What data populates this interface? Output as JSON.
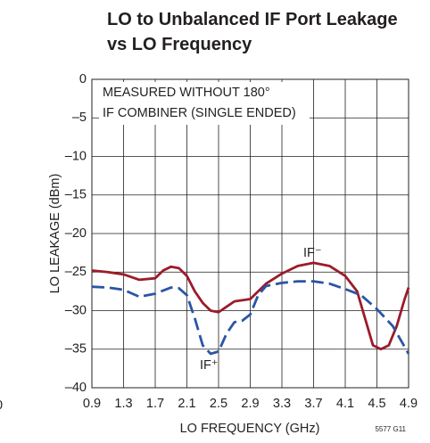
{
  "chart_data": {
    "type": "line",
    "title": [
      "LO to Unbalanced IF Port Leakage",
      "vs LO Frequency"
    ],
    "xlabel": "LO FREQUENCY (GHz)",
    "ylabel": "LO LEAKAGE (dBm)",
    "xlim": [
      0.9,
      4.9
    ],
    "xticks": [
      0.9,
      1.3,
      1.7,
      2.1,
      2.5,
      2.9,
      3.3,
      3.7,
      4.1,
      4.5,
      4.9
    ],
    "ylim": [
      -40,
      0
    ],
    "yticks": [
      {
        "value": -40,
        "label": "–40"
      },
      {
        "value": -35,
        "label": "–35"
      },
      {
        "value": -30,
        "label": "–30"
      },
      {
        "value": -25,
        "label": "–25"
      },
      {
        "value": -20,
        "label": "–20"
      },
      {
        "value": -15,
        "label": "–15"
      },
      {
        "value": -10,
        "label": "–10"
      },
      {
        "value": -5,
        "label": "–5"
      },
      0
    ],
    "grid": true,
    "series": [
      {
        "name": "IF⁻",
        "color": "#9b1b2a",
        "style": "solid",
        "x": [
          0.9,
          1.1,
          1.3,
          1.5,
          1.7,
          1.8,
          1.9,
          2.0,
          2.1,
          2.2,
          2.3,
          2.4,
          2.5,
          2.6,
          2.7,
          2.9,
          3.0,
          3.1,
          3.3,
          3.5,
          3.7,
          3.9,
          4.1,
          4.25,
          4.35,
          4.45,
          4.55,
          4.65,
          4.75,
          4.85,
          4.9
        ],
        "values": [
          -24.8,
          -25.0,
          -25.3,
          -26.0,
          -25.8,
          -24.8,
          -24.3,
          -24.5,
          -25.5,
          -27.5,
          -29.0,
          -30.0,
          -30.2,
          -29.5,
          -28.8,
          -28.5,
          -27.5,
          -26.5,
          -25.2,
          -24.2,
          -23.8,
          -24.2,
          -25.5,
          -27.5,
          -31.0,
          -34.5,
          -35.0,
          -34.5,
          -32.0,
          -28.5,
          -27.0
        ]
      },
      {
        "name": "IF⁺",
        "color": "#2a55a5",
        "style": "dashed",
        "x": [
          0.9,
          1.1,
          1.3,
          1.5,
          1.7,
          1.9,
          2.0,
          2.1,
          2.2,
          2.3,
          2.4,
          2.5,
          2.6,
          2.7,
          2.8,
          2.9,
          3.0,
          3.1,
          3.3,
          3.5,
          3.7,
          3.9,
          4.1,
          4.3,
          4.5,
          4.7,
          4.9
        ],
        "values": [
          -26.9,
          -27.0,
          -27.3,
          -28.2,
          -27.8,
          -27.0,
          -27.1,
          -28.0,
          -31.0,
          -34.5,
          -35.6,
          -35.3,
          -33.0,
          -31.5,
          -31.3,
          -30.5,
          -28.0,
          -26.8,
          -26.4,
          -26.2,
          -26.2,
          -26.5,
          -27.2,
          -28.0,
          -29.8,
          -32.0,
          -35.6
        ]
      }
    ],
    "annotations": [
      "MEASURED WITHOUT 180°",
      "IF COMBINER (SINGLE ENDED)",
      "5577 G11",
      "0"
    ]
  }
}
